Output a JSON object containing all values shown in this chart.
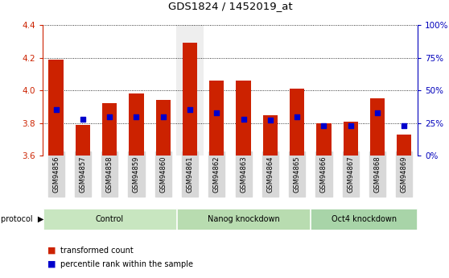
{
  "title": "GDS1824 / 1452019_at",
  "samples": [
    "GSM94856",
    "GSM94857",
    "GSM94858",
    "GSM94859",
    "GSM94860",
    "GSM94861",
    "GSM94862",
    "GSM94863",
    "GSM94864",
    "GSM94865",
    "GSM94866",
    "GSM94867",
    "GSM94868",
    "GSM94869"
  ],
  "bar_values": [
    4.19,
    3.79,
    3.92,
    3.98,
    3.94,
    4.29,
    4.06,
    4.06,
    3.85,
    4.01,
    3.8,
    3.81,
    3.95,
    3.73
  ],
  "percentile_values": [
    35,
    28,
    30,
    30,
    30,
    35,
    33,
    28,
    27,
    30,
    23,
    23,
    33,
    23
  ],
  "ylim_left": [
    3.6,
    4.4
  ],
  "ylim_right": [
    0,
    100
  ],
  "yticks_left": [
    3.6,
    3.8,
    4.0,
    4.2,
    4.4
  ],
  "yticks_right": [
    0,
    25,
    50,
    75,
    100
  ],
  "bar_color": "#cc2200",
  "dot_color": "#0000cc",
  "bar_bottom": 3.6,
  "right_axis_color": "#0000bb",
  "left_axis_color": "#cc2200",
  "highlighted_col_bg": "#eeeeee",
  "highlighted_col_idx": 5,
  "groups": [
    {
      "label": "Control",
      "start": 0,
      "end": 4,
      "color": "#c8e6c0"
    },
    {
      "label": "Nanog knockdown",
      "start": 5,
      "end": 9,
      "color": "#b8dcb0"
    },
    {
      "label": "Oct4 knockdown",
      "start": 10,
      "end": 13,
      "color": "#a8d4a8"
    }
  ],
  "tick_bg_color": "#d8d8d8",
  "grid_color": "black",
  "grid_linestyle": ":",
  "grid_linewidth": 0.6
}
